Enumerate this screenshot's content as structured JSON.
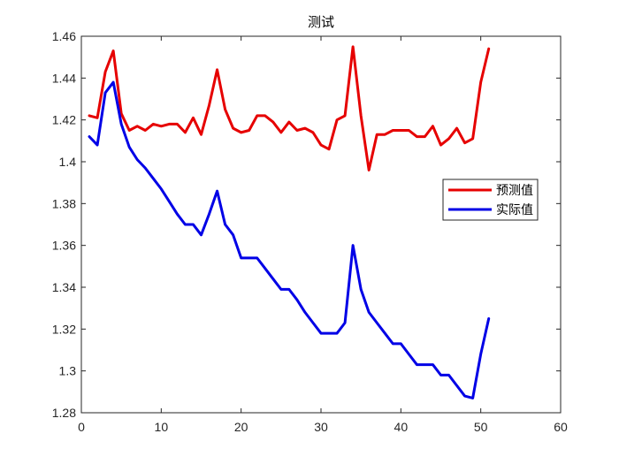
{
  "chart_data": {
    "type": "line",
    "title": "测试",
    "xlabel": "",
    "ylabel": "",
    "xlim": [
      0,
      60
    ],
    "ylim": [
      1.28,
      1.46
    ],
    "xticks": [
      0,
      10,
      20,
      30,
      40,
      50,
      60
    ],
    "yticks": [
      1.28,
      1.3,
      1.32,
      1.34,
      1.36,
      1.38,
      1.4,
      1.42,
      1.44,
      1.46
    ],
    "xtick_labels": [
      "0",
      "10",
      "20",
      "30",
      "40",
      "50",
      "60"
    ],
    "ytick_labels": [
      "1.28",
      "1.3",
      "1.32",
      "1.34",
      "1.36",
      "1.38",
      "1.4",
      "1.42",
      "1.44",
      "1.46"
    ],
    "grid": false,
    "legend_position": "right",
    "x": [
      1,
      2,
      3,
      4,
      5,
      6,
      7,
      8,
      9,
      10,
      11,
      12,
      13,
      14,
      15,
      16,
      17,
      18,
      19,
      20,
      21,
      22,
      23,
      24,
      25,
      26,
      27,
      28,
      29,
      30,
      31,
      32,
      33,
      34,
      35,
      36,
      37,
      38,
      39,
      40,
      41,
      42,
      43,
      44,
      45,
      46,
      47,
      48,
      49,
      50,
      51
    ],
    "series": [
      {
        "name": "预测值",
        "color": "#e60000",
        "values": [
          1.422,
          1.421,
          1.443,
          1.453,
          1.423,
          1.415,
          1.417,
          1.415,
          1.418,
          1.417,
          1.418,
          1.418,
          1.414,
          1.421,
          1.413,
          1.427,
          1.444,
          1.425,
          1.416,
          1.414,
          1.415,
          1.422,
          1.422,
          1.419,
          1.414,
          1.419,
          1.415,
          1.416,
          1.414,
          1.408,
          1.406,
          1.42,
          1.422,
          1.455,
          1.422,
          1.396,
          1.413,
          1.413,
          1.415,
          1.415,
          1.415,
          1.412,
          1.412,
          1.417,
          1.408,
          1.411,
          1.416,
          1.409,
          1.411,
          1.438,
          1.454
        ]
      },
      {
        "name": "实际值",
        "color": "#0000e6",
        "values": [
          1.412,
          1.408,
          1.433,
          1.438,
          1.418,
          1.407,
          1.401,
          1.397,
          1.392,
          1.387,
          1.381,
          1.375,
          1.37,
          1.37,
          1.365,
          1.375,
          1.386,
          1.37,
          1.365,
          1.354,
          1.354,
          1.354,
          1.349,
          1.344,
          1.339,
          1.339,
          1.334,
          1.328,
          1.323,
          1.318,
          1.318,
          1.318,
          1.323,
          1.36,
          1.339,
          1.328,
          1.323,
          1.318,
          1.313,
          1.313,
          1.308,
          1.303,
          1.303,
          1.303,
          1.298,
          1.298,
          1.293,
          1.288,
          1.287,
          1.308,
          1.325
        ]
      }
    ]
  }
}
